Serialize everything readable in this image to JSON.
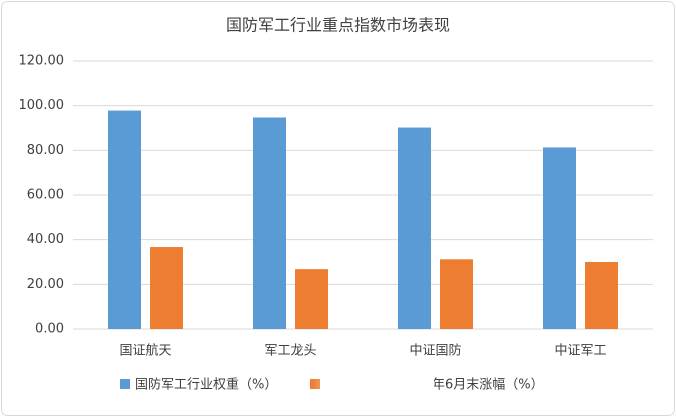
{
  "chart_data": {
    "type": "bar",
    "title": "国防军工行业重点指数市场表现",
    "categories": [
      "国证航天",
      "军工龙头",
      "中证国防",
      "中证军工"
    ],
    "series": [
      {
        "name": "国防军工行业权重（%）",
        "color": "#5b9bd5",
        "values": [
          97.8,
          94.7,
          90.2,
          81.3
        ]
      },
      {
        "name": "年6月末涨幅（%）",
        "color": "#ed7d31",
        "values": [
          36.7,
          26.8,
          31.2,
          30.0
        ]
      }
    ],
    "ylim": [
      0,
      120
    ],
    "yticks": [
      {
        "value": 0,
        "label": "0.00"
      },
      {
        "value": 20,
        "label": "20.00"
      },
      {
        "value": 40,
        "label": "40.00"
      },
      {
        "value": 60,
        "label": "60.00"
      },
      {
        "value": 80,
        "label": "80.00"
      },
      {
        "value": 100,
        "label": "100.00"
      },
      {
        "value": 120,
        "label": "120.00"
      }
    ],
    "grid": true
  }
}
